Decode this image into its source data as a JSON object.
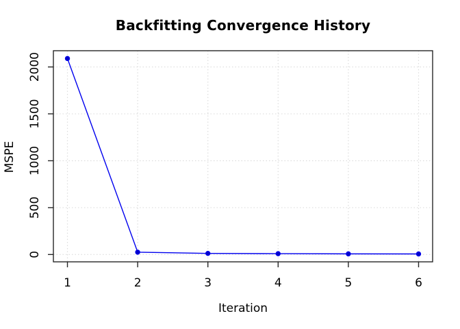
{
  "chart_data": {
    "type": "line",
    "title": "Backfitting Convergence History",
    "xlabel": "Iteration",
    "ylabel": "MSPE",
    "x": [
      1,
      2,
      3,
      4,
      5,
      6
    ],
    "values": [
      2090,
      25,
      12,
      9,
      7,
      6
    ],
    "series_name": "MSPE",
    "x_ticks": [
      1,
      2,
      3,
      4,
      5,
      6
    ],
    "y_ticks": [
      0,
      500,
      1000,
      1500,
      2000
    ],
    "xlim": [
      0.8,
      6.2
    ],
    "ylim": [
      -78,
      2173
    ],
    "grid": true,
    "legend": "none",
    "line_color": "#0000ee",
    "point_color": "#0000cc",
    "grid_color": "#dcdcdc",
    "axis_color": "#262626",
    "tick_label_color": "#000000",
    "background_color": "#ffffff",
    "point_style": "filled-circle"
  }
}
